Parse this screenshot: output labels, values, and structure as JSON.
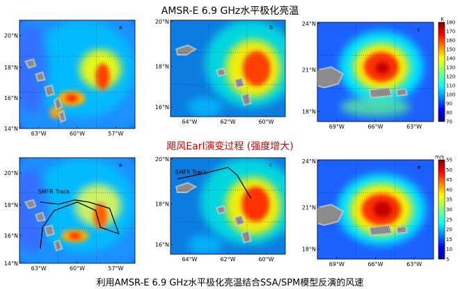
{
  "titles": {
    "top": "AMSR-E 6.9 GHz水平极化亮温",
    "middle": "飓风Earl演变过程 (强度增大)",
    "bottom": "利用AMSR-E 6.9 GHz水平极化亮温结合SSA/SPM模型反演的风速"
  },
  "colors": {
    "title_middle": "#cc0000",
    "land": "#8c8c8c"
  },
  "chart_data": [
    {
      "type": "heatmap",
      "label": "a",
      "colorbar": null,
      "xticks": [
        "63°W",
        "60°W",
        "57°W"
      ],
      "yticks": [
        "20°N",
        "18°N",
        "16°N",
        "14°N"
      ],
      "track_label": ""
    },
    {
      "type": "heatmap",
      "label": "b",
      "colorbar": null,
      "xticks": [
        "64°W",
        "62°W",
        "60°W"
      ],
      "yticks": [
        "20°N",
        "18°N",
        "16°N"
      ],
      "track_label": ""
    },
    {
      "type": "heatmap",
      "label": "c",
      "colorbar": {
        "unit": "K",
        "ticks": [
          "180",
          "170",
          "160",
          "150",
          "140",
          "130",
          "120",
          "110",
          "100",
          "90",
          "80",
          "70"
        ],
        "range": [
          70,
          180
        ]
      },
      "xticks": [
        "69°W",
        "66°W",
        "63°W"
      ],
      "yticks": [
        "24°N",
        "21°N",
        "18°N"
      ],
      "track_label": ""
    },
    {
      "type": "heatmap",
      "label": "a",
      "colorbar": null,
      "xticks": [
        "63°W",
        "60°W",
        "57°W"
      ],
      "yticks": [
        "20°N",
        "18°N",
        "16°N",
        "14°N"
      ],
      "track_label": "SMFR Track"
    },
    {
      "type": "heatmap",
      "label": "c",
      "colorbar": null,
      "xticks": [
        "64°W",
        "62°W",
        "60°W"
      ],
      "yticks": [
        "20°N",
        "18°N",
        "16°N"
      ],
      "track_label": "SMFR Track"
    },
    {
      "type": "heatmap",
      "label": "e",
      "colorbar": {
        "unit": "m/s",
        "ticks": [
          "55",
          "50",
          "45",
          "40",
          "35",
          "30",
          "25",
          "20",
          "15",
          "10",
          "5"
        ],
        "range": [
          5,
          55
        ]
      },
      "xticks": [
        "69°W",
        "66°W",
        "63°W"
      ],
      "yticks": [
        "24°N",
        "21°N",
        "18°N"
      ],
      "track_label": ""
    }
  ]
}
